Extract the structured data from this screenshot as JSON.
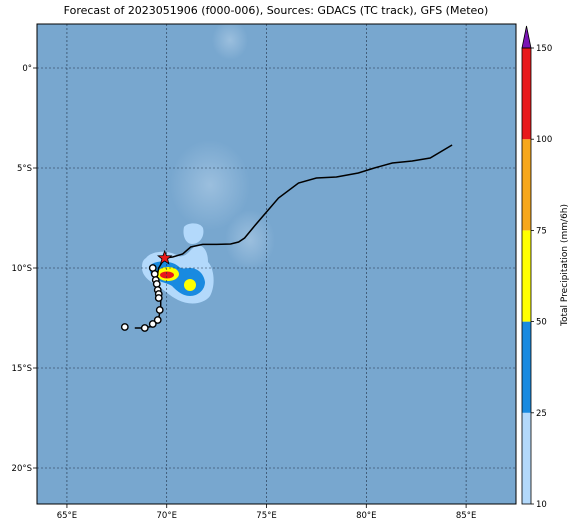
{
  "title": "Forecast of 2023051906 (f000-006), Sources: GDACS (TC track), GFS (Meteo)",
  "map": {
    "lon_range": [
      63.5,
      87.5
    ],
    "lat_range": [
      -21.8,
      2.2
    ],
    "x_ticks": [
      {
        "value": 65,
        "label": "65°E"
      },
      {
        "value": 70,
        "label": "70°E"
      },
      {
        "value": 75,
        "label": "75°E"
      },
      {
        "value": 80,
        "label": "80°E"
      },
      {
        "value": 85,
        "label": "85°E"
      }
    ],
    "y_ticks": [
      {
        "value": 0,
        "label": "0°"
      },
      {
        "value": -5,
        "label": "5°S"
      },
      {
        "value": -10,
        "label": "10°S"
      },
      {
        "value": -15,
        "label": "15°S"
      },
      {
        "value": -20,
        "label": "20°S"
      }
    ],
    "grid": true,
    "ocean_color": "#78a7cf"
  },
  "colorbar": {
    "label": "Total Precipitation (mm/6h)",
    "levels": [
      {
        "value": 10,
        "label": "10"
      },
      {
        "value": 25,
        "label": "25"
      },
      {
        "value": 50,
        "label": "50"
      },
      {
        "value": 75,
        "label": "75"
      },
      {
        "value": 100,
        "label": "100"
      },
      {
        "value": 150,
        "label": "150"
      }
    ],
    "colors": [
      "#b3d9fb",
      "#198ae0",
      "#ffff00",
      "#f7a71b",
      "#e8191b"
    ],
    "extend_color": "#7a14b4"
  },
  "track": {
    "current_position": {
      "lon": 69.9,
      "lat": -9.5
    },
    "past_track": [
      [
        84.3,
        -3.85
      ],
      [
        83.2,
        -4.5
      ],
      [
        82.3,
        -4.65
      ],
      [
        81.3,
        -4.75
      ],
      [
        80.4,
        -5.0
      ],
      [
        79.6,
        -5.25
      ],
      [
        78.5,
        -5.45
      ],
      [
        77.5,
        -5.5
      ],
      [
        76.6,
        -5.75
      ],
      [
        75.6,
        -6.5
      ],
      [
        75.0,
        -7.2
      ],
      [
        74.4,
        -7.9
      ],
      [
        73.9,
        -8.5
      ],
      [
        73.6,
        -8.7
      ],
      [
        73.2,
        -8.8
      ],
      [
        72.5,
        -8.82
      ],
      [
        71.8,
        -8.82
      ],
      [
        71.2,
        -8.95
      ],
      [
        70.8,
        -9.3
      ],
      [
        70.3,
        -9.45
      ],
      [
        69.9,
        -9.5
      ]
    ],
    "forecast_track": [
      [
        69.9,
        -9.5
      ],
      [
        69.6,
        -10.0
      ],
      [
        69.5,
        -10.5
      ],
      [
        69.6,
        -11.0
      ],
      [
        69.7,
        -11.5
      ],
      [
        69.7,
        -12.0
      ],
      [
        69.6,
        -12.5
      ],
      [
        69.4,
        -12.9
      ],
      [
        68.8,
        -13.0
      ],
      [
        68.4,
        -13.0
      ]
    ],
    "forecast_points": [
      [
        69.3,
        -10.0
      ],
      [
        69.4,
        -10.3
      ],
      [
        69.45,
        -10.6
      ],
      [
        69.5,
        -10.8
      ],
      [
        69.55,
        -11.1
      ],
      [
        69.6,
        -11.3
      ],
      [
        69.6,
        -11.5
      ],
      [
        69.65,
        -12.1
      ],
      [
        69.55,
        -12.6
      ],
      [
        69.3,
        -12.8
      ],
      [
        68.9,
        -13.0
      ],
      [
        67.9,
        -12.95
      ]
    ]
  }
}
